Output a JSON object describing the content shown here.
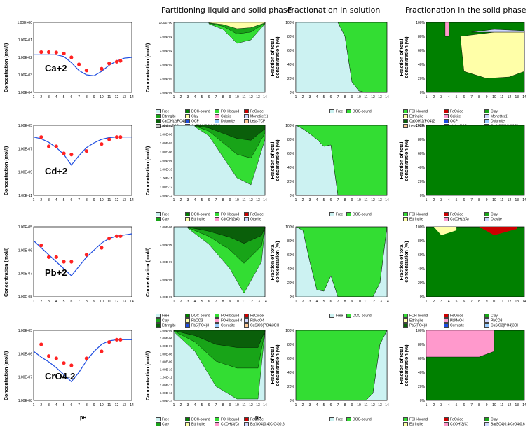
{
  "headers": {
    "partition": "Partitioning liquid and solid phase",
    "solution": "Fractionation in solution",
    "solid": "Fractionation in the solid phase"
  },
  "axis": {
    "conc_label": "Concentration (mol/l)",
    "frac_label": "Fraction of total concentration (%)",
    "ph_label": "pH"
  },
  "colors": {
    "free": "#ccf2f2",
    "doc": "#008000",
    "fe": "#cc0000",
    "ca": "#1e4de0",
    "green_light": "#33dd33",
    "green_mid": "#18a418",
    "green_dark": "#0a5f0a",
    "yellow": "#ffffa8",
    "pink": "#ff99cc",
    "lav": "#d0d8ff"
  },
  "rows": [
    {
      "ion": "Ca+2",
      "scatter_ylabels": [
        "1.00E+00",
        "1.00E-01",
        "1.00E-02",
        "1.00E-03",
        "1.00E-04"
      ],
      "part_ylabels": [
        "1.00E+00",
        "1.00E-01",
        "1.00E-02",
        "1.00E-03",
        "1.00E-04",
        "1.00E-05"
      ],
      "sol_legend": [
        "Free",
        "DOC-bound"
      ],
      "part_legend": [
        "Free",
        "DOC-bound",
        "FOH-bound",
        "FeOxide",
        "Ettringite",
        "Clay",
        "Calcite",
        "Monetite(1)",
        "Ca(OH)2(PO4)2",
        "OCP",
        "Dolomite",
        "beta-TCP",
        "alpha-TCP",
        "CaSiO3(PO4)3OH"
      ],
      "solid_legend": [
        "FOH-bound",
        "FeOxide",
        "Clay",
        "Ettringite",
        "Calcite",
        "Monetite(1)",
        "Ca(OH)2(PO4)2",
        "OCP",
        "Dolomite",
        "beta-TCP",
        "alpha-TCP",
        "CaSiO3(PO4)3OH"
      ]
    },
    {
      "ion": "Cd+2",
      "scatter_ylabels": [
        "1.00E-05",
        "1.00E-07",
        "1.00E-09",
        "1.00E-11"
      ],
      "part_ylabels": [
        "1.00E-05",
        "1.00E-06",
        "1.00E-07",
        "1.00E-08",
        "1.00E-09",
        "1.00E-10",
        "1.00E-11",
        "1.00E-12",
        "1.00E-13"
      ],
      "sol_legend": [
        "Free",
        "DOC-bound"
      ],
      "part_legend": [
        "Free",
        "DOC-bound",
        "FOH-bound",
        "FeOxide",
        "Clay",
        "Ettringite",
        "Cd(OH)2(A)",
        "Otavite"
      ],
      "solid_legend": [
        "FOH-bound",
        "FeOxide",
        "Clay",
        "Ettringite",
        "Cd(OH)2(A)",
        "Otavite"
      ]
    },
    {
      "ion": "Pb+2",
      "scatter_ylabels": [
        "1.00E-05",
        "1.00E-06",
        "1.00E-07",
        "1.00E-08"
      ],
      "part_ylabels": [
        "1.00E-05",
        "1.00E-06",
        "1.00E-07",
        "1.00E-08",
        "1.00E-09"
      ],
      "sol_legend": [
        "Free",
        "DOC-bound"
      ],
      "part_legend": [
        "Free",
        "DOC-bound",
        "FOH-bound",
        "FeOxide",
        "Clay",
        "PbCO3",
        "FOH-bound-4",
        "PbMoO4",
        "Ettringite",
        "Pb5(PO4)3",
        "Cerrusite",
        "CaSiO3(PO4)3OH"
      ],
      "solid_legend": [
        "FOH-bound",
        "FeOxide",
        "Clay",
        "Ettringite",
        "PbMoO4",
        "PbCO3",
        "Pb5(PO4)3",
        "Cerrusite",
        "CaSiO3(PO4)3OH"
      ]
    },
    {
      "ion": "CrO4-2",
      "scatter_ylabels": [
        "1.00E-05",
        "1.00E-06",
        "1.00E-07",
        "1.00E-08"
      ],
      "part_ylabels": [
        "1.00E-05",
        "1.00E-06",
        "1.00E-07",
        "1.00E-08",
        "1.00E-09",
        "1.00E-10",
        "1.00E-11",
        "1.00E-12",
        "1.00E-13",
        "1.00E-14"
      ],
      "sol_legend": [
        "Free",
        "DOC-bound"
      ],
      "part_legend": [
        "Free",
        "DOC-bound",
        "FOH-bound",
        "FeOxide",
        "Clay",
        "Ettringite",
        "Cr(OH)3(C)",
        "Ba(SO4)0.4(CrO4)0.6"
      ],
      "solid_legend": [
        "FOH-bound",
        "FeOxide",
        "Clay",
        "Ettringite",
        "Cr(OH)3(C)",
        "Ba(SO4)0.4(CrO4)0.6"
      ]
    }
  ],
  "frac_ticks": [
    "0%",
    "20%",
    "40%",
    "60%",
    "80%",
    "100%"
  ],
  "chart_data": [
    {
      "type": "scatter",
      "ion": "Ca+2",
      "x_range": [
        1,
        14
      ],
      "x_ticks": [
        "1",
        "2",
        "3",
        "4",
        "5",
        "6",
        "7",
        "8",
        "9",
        "10",
        "11",
        "12",
        "13",
        "14"
      ],
      "points_x": [
        2,
        3,
        4,
        5,
        6,
        7,
        8,
        10,
        11,
        12,
        12.5
      ],
      "points_logy": [
        -1.7,
        -1.7,
        -1.72,
        -1.78,
        -2.0,
        -2.4,
        -2.75,
        -2.65,
        -2.35,
        -2.25,
        -2.2
      ],
      "model_x": [
        1,
        2,
        3,
        4,
        5,
        6,
        7,
        8,
        9,
        10,
        11,
        12,
        13,
        14
      ],
      "model_logy": [
        -1.85,
        -1.85,
        -1.85,
        -1.85,
        -1.95,
        -2.3,
        -2.75,
        -3.0,
        -3.05,
        -2.8,
        -2.45,
        -2.2,
        -2.05,
        -2.0
      ],
      "ylim_log": [
        -4,
        0
      ]
    },
    {
      "type": "area",
      "panel": "partition",
      "ion": "Ca+2",
      "x_range": [
        1,
        14
      ],
      "ylim_log": [
        -5,
        0
      ]
    },
    {
      "type": "area",
      "panel": "solution",
      "ion": "Ca+2",
      "x": [
        1,
        2,
        3,
        4,
        5,
        6,
        7,
        8,
        9,
        10,
        11,
        12,
        13,
        14
      ],
      "free_pct": [
        100,
        100,
        100,
        100,
        100,
        100,
        100,
        80,
        15,
        2,
        0,
        0,
        0,
        0
      ]
    },
    {
      "type": "scatter",
      "ion": "Cd+2",
      "x_range": [
        1,
        14
      ],
      "points_x": [
        2,
        3,
        4,
        5,
        6,
        8,
        10,
        11,
        12,
        12.5
      ],
      "points_logy": [
        -6.0,
        -6.8,
        -6.8,
        -7.4,
        -7.5,
        -7.2,
        -6.6,
        -6.2,
        -6.0,
        -6.0
      ],
      "model_x": [
        1,
        2,
        3,
        4,
        5,
        6,
        7,
        8,
        9,
        10,
        11,
        12,
        13,
        14
      ],
      "model_logy": [
        -6.0,
        -6.15,
        -6.45,
        -6.9,
        -7.5,
        -8.4,
        -7.6,
        -6.9,
        -6.5,
        -6.2,
        -6.05,
        -6.0,
        -6.0,
        -6.0
      ],
      "ylim_log": [
        -11,
        -5
      ]
    },
    {
      "type": "area",
      "panel": "solution",
      "ion": "Cd+2",
      "x": [
        1,
        2,
        3,
        4,
        5,
        6,
        7,
        8,
        9,
        10,
        11,
        12,
        13,
        14
      ],
      "free_pct": [
        100,
        95,
        88,
        80,
        70,
        72,
        0,
        0,
        0,
        0,
        0,
        0,
        0,
        0
      ]
    },
    {
      "type": "scatter",
      "ion": "Pb+2",
      "x_range": [
        1,
        14
      ],
      "points_x": [
        2,
        3,
        4,
        5,
        6,
        8,
        10,
        11,
        12,
        12.5
      ],
      "points_logy": [
        -5.8,
        -6.3,
        -6.3,
        -6.5,
        -6.5,
        -6.2,
        -5.9,
        -5.5,
        -5.4,
        -5.4
      ],
      "model_x": [
        1,
        2,
        3,
        4,
        5,
        6,
        7,
        8,
        9,
        10,
        11,
        12,
        13,
        14
      ],
      "model_logy": [
        -5.6,
        -5.9,
        -6.2,
        -6.5,
        -6.8,
        -7.1,
        -6.7,
        -6.3,
        -6.0,
        -5.7,
        -5.5,
        -5.4,
        -5.35,
        -5.3
      ],
      "ylim_log": [
        -8,
        -5
      ]
    },
    {
      "type": "area",
      "panel": "solution",
      "ion": "Pb+2",
      "x": [
        1,
        2,
        3,
        4,
        5,
        6,
        7,
        8,
        9,
        10,
        11,
        12,
        13,
        14
      ],
      "free_pct": [
        100,
        95,
        50,
        10,
        8,
        30,
        0,
        0,
        0,
        0,
        0,
        0,
        20,
        100
      ]
    },
    {
      "type": "scatter",
      "ion": "CrO4-2",
      "x_range": [
        1,
        14
      ],
      "points_x": [
        2,
        3,
        4,
        5,
        6,
        8,
        10,
        11,
        12,
        12.5
      ],
      "points_logy": [
        -5.6,
        -6.1,
        -6.2,
        -6.4,
        -6.5,
        -6.2,
        -5.9,
        -5.5,
        -5.4,
        -5.4
      ],
      "model_x": [
        1,
        2,
        3,
        4,
        5,
        6,
        7,
        8,
        9,
        10,
        11,
        12,
        13,
        14
      ],
      "model_logy": [
        -5.9,
        -6.15,
        -6.35,
        -6.6,
        -6.9,
        -7.2,
        -6.8,
        -6.3,
        -5.9,
        -5.6,
        -5.45,
        -5.4,
        -5.4,
        -5.4
      ],
      "ylim_log": [
        -8,
        -5
      ]
    },
    {
      "type": "area",
      "panel": "solution",
      "ion": "CrO4-2",
      "x": [
        1,
        2,
        3,
        4,
        5,
        6,
        7,
        8,
        9,
        10,
        11,
        12,
        13,
        14
      ],
      "free_pct": [
        0,
        0,
        0,
        0,
        0,
        0,
        0,
        0,
        0,
        0,
        0,
        10,
        80,
        100
      ]
    }
  ]
}
